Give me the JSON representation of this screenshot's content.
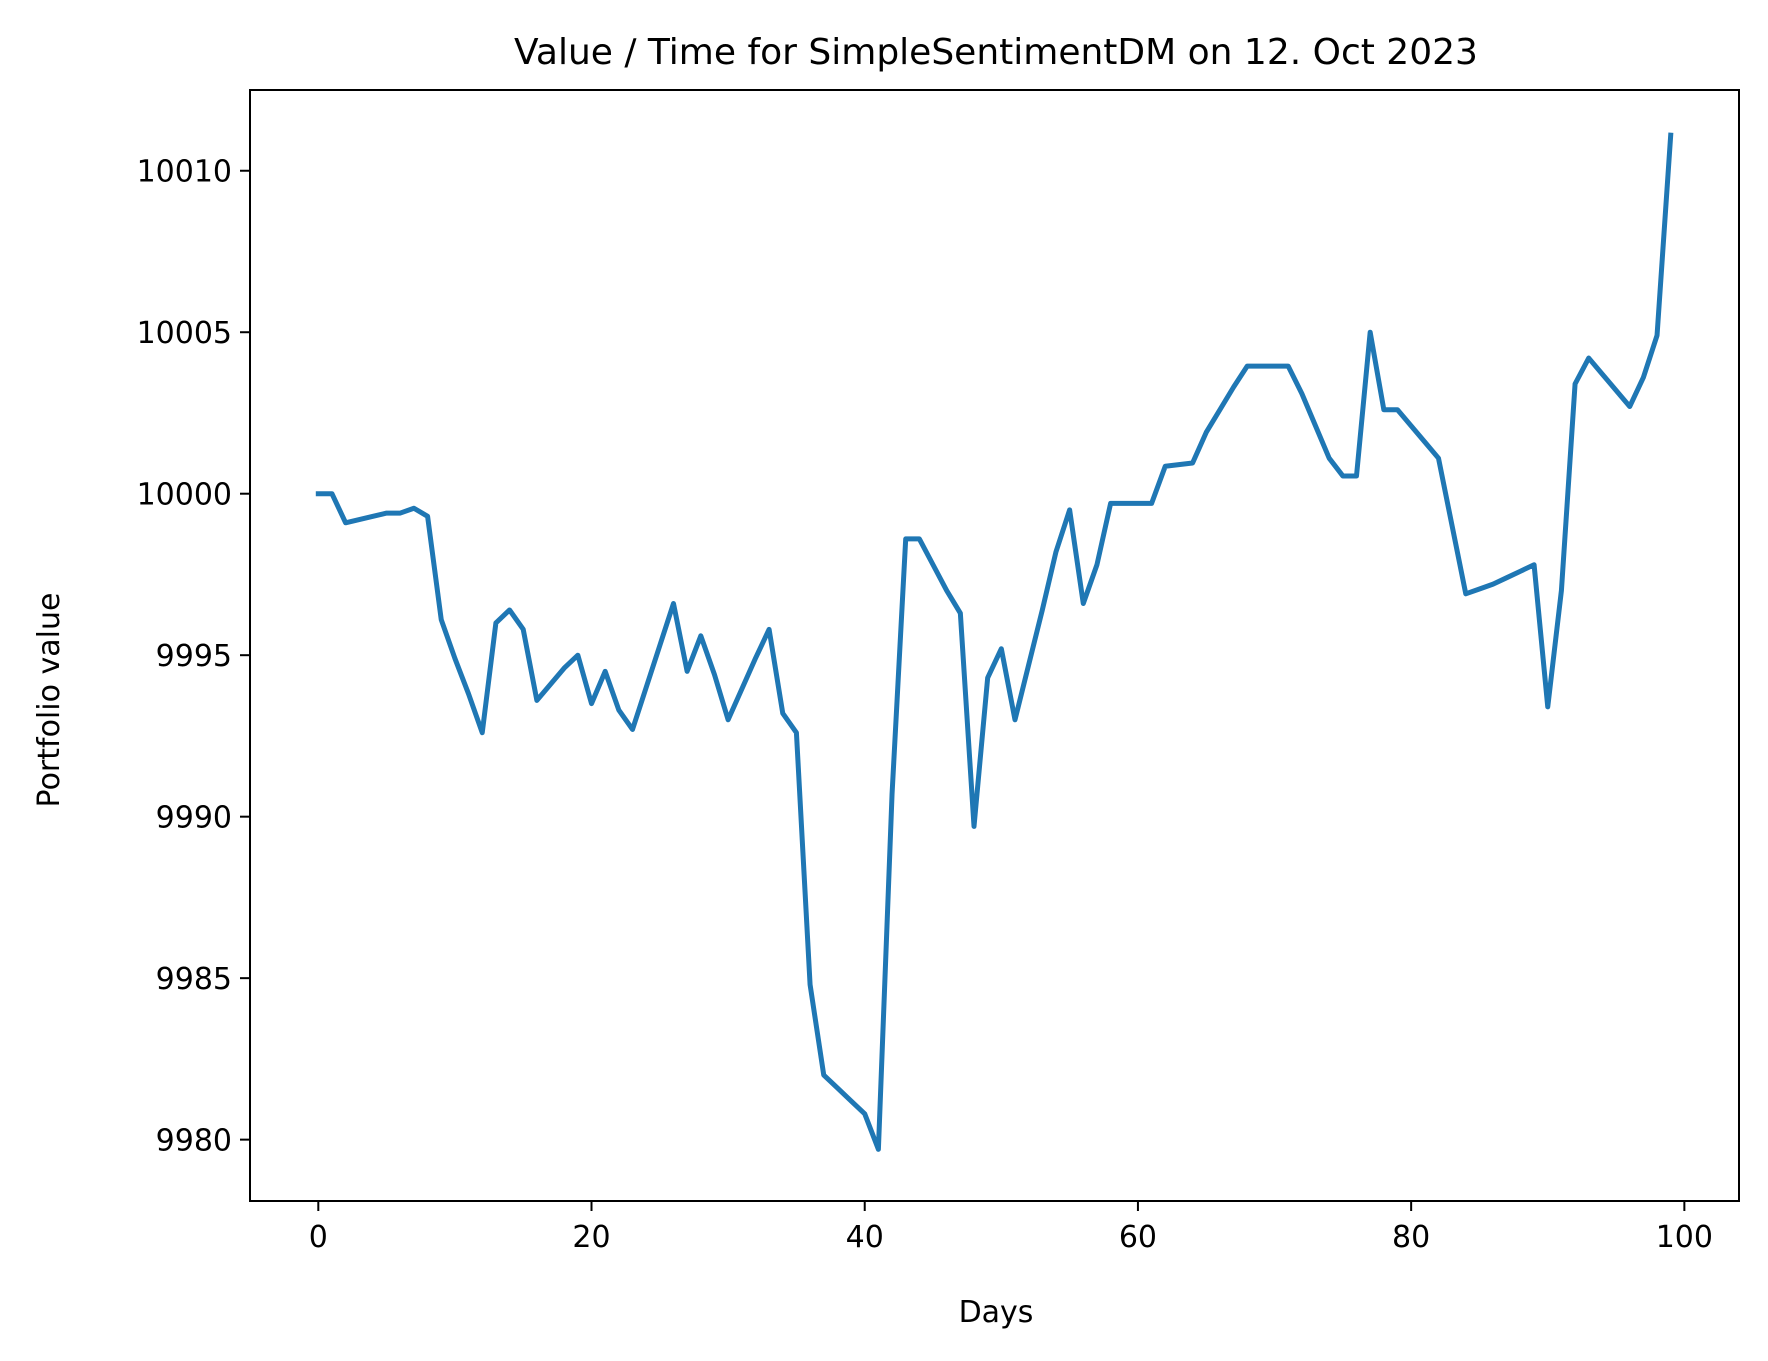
{
  "chart_data": {
    "type": "line",
    "title": "Value / Time for SimpleSentimentDM on 12. Oct 2023",
    "xlabel": "Days",
    "ylabel": "Portfolio value",
    "xlim": [
      -5,
      104
    ],
    "ylim": [
      9978.1,
      10012.5
    ],
    "xticks": [
      0,
      20,
      40,
      60,
      80,
      100
    ],
    "yticks": [
      9980,
      9985,
      9990,
      9995,
      10000,
      10005,
      10010
    ],
    "grid": false,
    "legend": "none",
    "series": [
      {
        "color": "#1f77b4",
        "x": [
          0,
          1,
          2,
          3,
          4,
          5,
          6,
          7,
          8,
          9,
          10,
          11,
          12,
          13,
          14,
          15,
          16,
          17,
          18,
          19,
          20,
          21,
          22,
          23,
          24,
          25,
          26,
          27,
          28,
          29,
          30,
          31,
          32,
          33,
          34,
          35,
          36,
          37,
          38,
          39,
          40,
          41,
          42,
          43,
          44,
          45,
          46,
          47,
          48,
          49,
          50,
          51,
          52,
          53,
          54,
          55,
          56,
          57,
          58,
          59,
          60,
          61,
          62,
          63,
          64,
          65,
          66,
          67,
          68,
          69,
          70,
          71,
          72,
          73,
          74,
          75,
          76,
          77,
          78,
          79,
          80,
          81,
          82,
          83,
          84,
          85,
          86,
          87,
          88,
          89,
          90,
          91,
          92,
          93,
          94,
          95,
          96,
          97,
          98,
          99
        ],
        "y": [
          10000.0,
          10000.0,
          9999.1,
          9999.2,
          9999.3,
          9999.4,
          9999.4,
          9999.55,
          9999.3,
          9996.1,
          9994.9,
          9993.8,
          9992.6,
          9996.0,
          9996.4,
          9995.8,
          9993.6,
          9994.1,
          9994.6,
          9995.0,
          9993.5,
          9994.5,
          9993.3,
          9992.7,
          9994.0,
          9995.3,
          9996.6,
          9994.5,
          9995.6,
          9994.4,
          9993.0,
          9993.95,
          9994.9,
          9995.8,
          9993.2,
          9992.6,
          9984.8,
          9982.0,
          9981.6,
          9981.2,
          9980.8,
          9979.7,
          9990.7,
          9998.6,
          9998.6,
          9997.8,
          9997.0,
          9996.3,
          9989.7,
          9994.3,
          9995.2,
          9993.0,
          9994.7,
          9996.4,
          9998.2,
          9999.5,
          9996.6,
          9997.8,
          9999.7,
          9999.7,
          9999.7,
          9999.7,
          10000.85,
          10000.9,
          10000.95,
          10001.9,
          10002.6,
          10003.3,
          10003.95,
          10003.95,
          10003.95,
          10003.95,
          10003.1,
          10002.1,
          10001.1,
          10000.55,
          10000.55,
          10005.0,
          10002.6,
          10002.6,
          10002.1,
          10001.6,
          10001.1,
          9999.0,
          9996.9,
          9997.05,
          9997.2,
          9997.4,
          9997.6,
          9997.8,
          9993.4,
          9997.0,
          10003.4,
          10004.2,
          10003.7,
          10003.2,
          10002.7,
          10003.6,
          10004.9,
          10011.1
        ]
      }
    ]
  }
}
